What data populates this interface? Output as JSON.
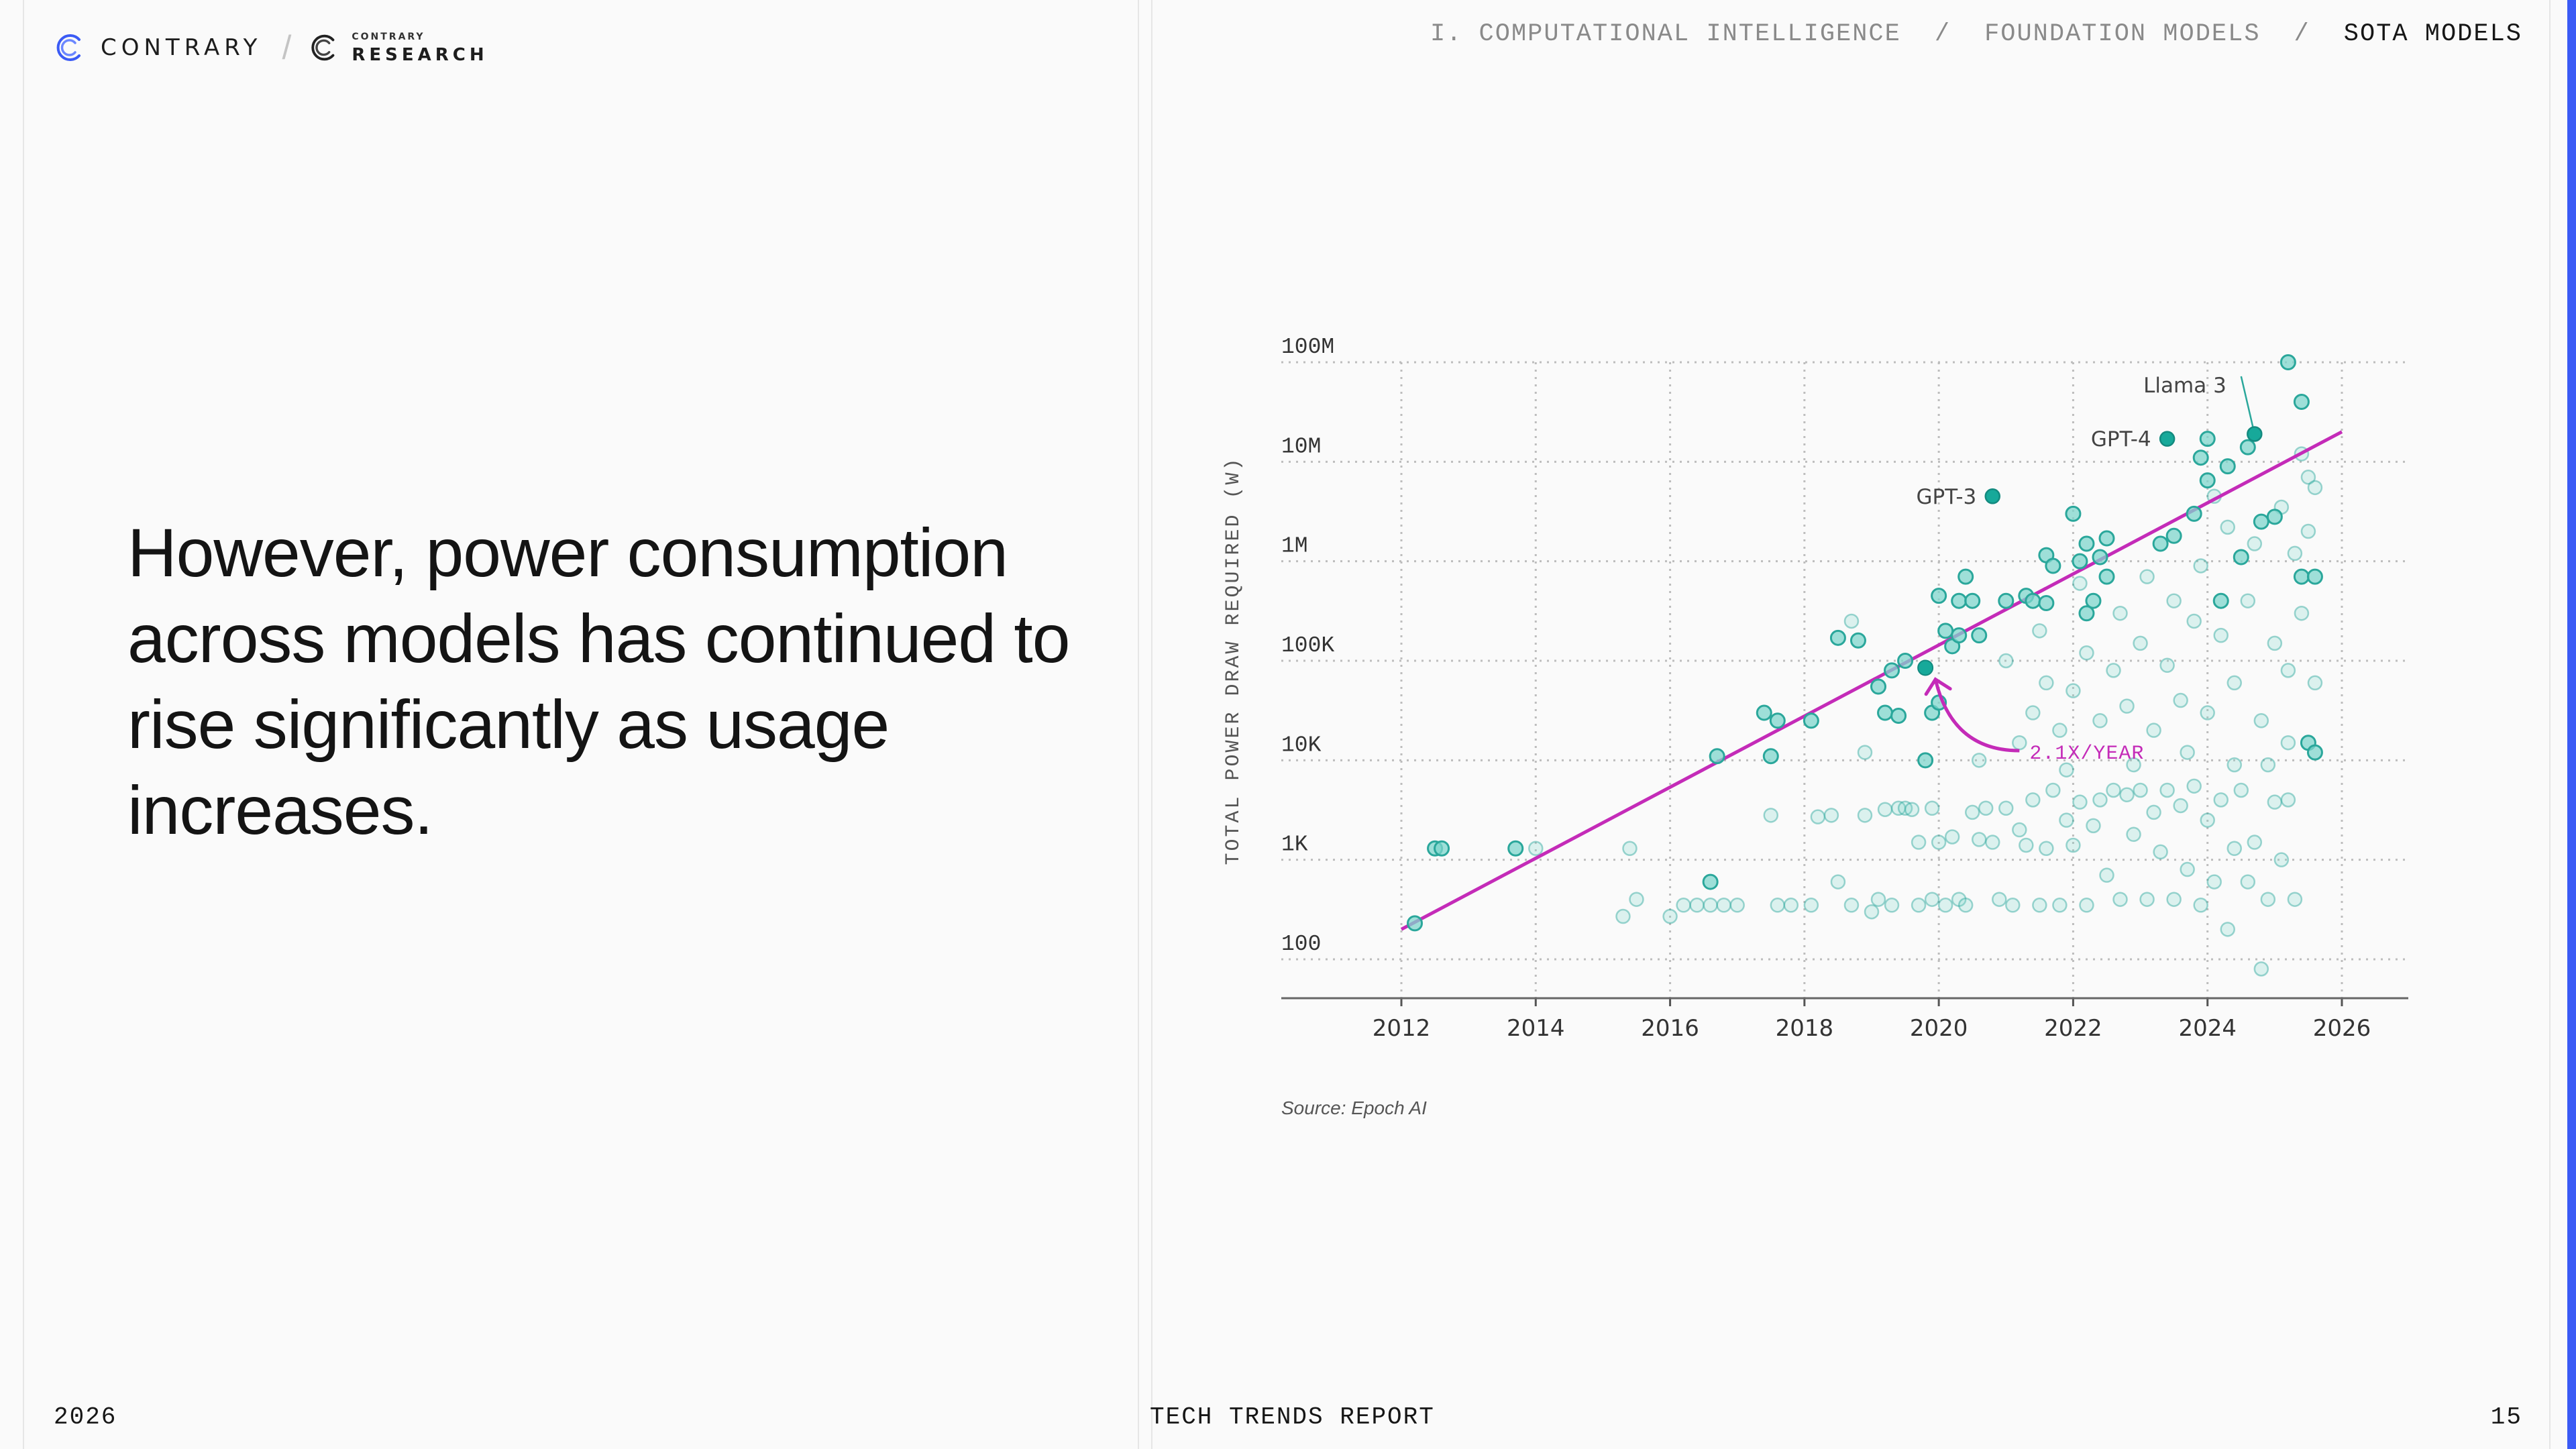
{
  "brand": {
    "name": "CONTRARY",
    "research_small": "CONTRARY",
    "research_big": "RESEARCH",
    "accent_color": "#3b5bf5"
  },
  "breadcrumb": {
    "items": [
      "I. COMPUTATIONAL INTELLIGENCE",
      "FOUNDATION MODELS",
      "SOTA MODELS"
    ],
    "separator": "/"
  },
  "headline": "However, power consumption across models has continued to rise significantly as usage increases.",
  "footer": {
    "year": "2026",
    "report": "TECH TRENDS REPORT",
    "page": "15"
  },
  "source": "Source: Epoch AI",
  "chart_data": {
    "type": "scatter",
    "title": "",
    "xlabel": "",
    "ylabel": "TOTAL POWER DRAW REQUIRED (W)",
    "xlim": [
      2010.35,
      2027.0
    ],
    "ylim": [
      30,
      100000000
    ],
    "yscale": "log",
    "x_ticks": [
      2012,
      2014,
      2016,
      2018,
      2020,
      2022,
      2024,
      2026
    ],
    "x_tick_labels": [
      "2012",
      "2014",
      "2016",
      "2018",
      "2020",
      "2022",
      "2024",
      "2026"
    ],
    "y_ticks": [
      100,
      1000,
      10000,
      100000,
      1000000,
      10000000,
      100000000
    ],
    "y_tick_labels": [
      "100",
      "1K",
      "10K",
      "100K",
      "1M",
      "10M",
      "100M"
    ],
    "grid": true,
    "colors": {
      "point_fill": "#7fd6cc",
      "point_stroke": "#2aa79b",
      "point_dark": "#17a99a",
      "trend": "#c42bb8",
      "grid": "#bdbdbd",
      "label": "#444444"
    },
    "trend": {
      "label": "2.1X/YEAR",
      "start": [
        2012.0,
        200
      ],
      "end": [
        2026.0,
        20000000
      ]
    },
    "series": [
      {
        "style": "highlighted",
        "points": [
          [
            2012.2,
            230
          ],
          [
            2012.5,
            1300
          ],
          [
            2012.6,
            1300
          ],
          [
            2013.7,
            1300
          ],
          [
            2016.6,
            600
          ],
          [
            2016.7,
            11000
          ],
          [
            2017.4,
            30000
          ],
          [
            2017.5,
            11000
          ],
          [
            2017.6,
            25000
          ],
          [
            2018.1,
            25000
          ],
          [
            2018.5,
            170000
          ],
          [
            2018.8,
            160000
          ],
          [
            2019.1,
            55000
          ],
          [
            2019.2,
            30000
          ],
          [
            2019.3,
            80000
          ],
          [
            2019.4,
            28000
          ],
          [
            2019.5,
            100000
          ],
          [
            2019.8,
            10000
          ],
          [
            2019.9,
            30000
          ],
          [
            2020.0,
            38000
          ],
          [
            2020.0,
            450000
          ],
          [
            2020.1,
            200000
          ],
          [
            2020.2,
            140000
          ],
          [
            2020.3,
            180000
          ],
          [
            2020.3,
            400000
          ],
          [
            2020.4,
            700000
          ],
          [
            2020.5,
            400000
          ],
          [
            2020.6,
            180000
          ],
          [
            2021.0,
            400000
          ],
          [
            2021.3,
            450000
          ],
          [
            2021.4,
            400000
          ],
          [
            2021.6,
            380000
          ],
          [
            2021.6,
            1150000
          ],
          [
            2021.7,
            900000
          ],
          [
            2022.0,
            3000000
          ],
          [
            2022.1,
            1000000
          ],
          [
            2022.2,
            1500000
          ],
          [
            2022.2,
            300000
          ],
          [
            2022.3,
            400000
          ],
          [
            2022.4,
            1100000
          ],
          [
            2022.5,
            1700000
          ],
          [
            2022.5,
            700000
          ],
          [
            2023.3,
            1500000
          ],
          [
            2023.5,
            1800000
          ],
          [
            2023.8,
            3000000
          ],
          [
            2023.9,
            11000000
          ],
          [
            2024.0,
            6500000
          ],
          [
            2024.0,
            17000000
          ],
          [
            2024.2,
            400000
          ],
          [
            2024.3,
            9000000
          ],
          [
            2024.5,
            1100000
          ],
          [
            2024.6,
            14000000
          ],
          [
            2024.8,
            2500000
          ],
          [
            2025.0,
            2800000
          ],
          [
            2025.2,
            100000000
          ],
          [
            2025.4,
            40000000
          ],
          [
            2025.4,
            700000
          ],
          [
            2025.5,
            15000
          ],
          [
            2025.6,
            700000
          ],
          [
            2025.6,
            12000
          ]
        ]
      },
      {
        "style": "faint",
        "points": [
          [
            2014.0,
            1300
          ],
          [
            2015.3,
            270
          ],
          [
            2015.4,
            1300
          ],
          [
            2015.5,
            400
          ],
          [
            2016.0,
            270
          ],
          [
            2016.2,
            350
          ],
          [
            2016.4,
            350
          ],
          [
            2016.6,
            350
          ],
          [
            2016.8,
            350
          ],
          [
            2017.0,
            350
          ],
          [
            2017.5,
            2800
          ],
          [
            2017.6,
            350
          ],
          [
            2017.8,
            350
          ],
          [
            2018.1,
            350
          ],
          [
            2018.2,
            2700
          ],
          [
            2018.4,
            2800
          ],
          [
            2018.5,
            600
          ],
          [
            2018.7,
            250000
          ],
          [
            2018.7,
            350
          ],
          [
            2018.9,
            12000
          ],
          [
            2018.9,
            2800
          ],
          [
            2019.0,
            300
          ],
          [
            2019.1,
            400
          ],
          [
            2019.2,
            3200
          ],
          [
            2019.3,
            350
          ],
          [
            2019.4,
            3300
          ],
          [
            2019.5,
            3300
          ],
          [
            2019.6,
            3200
          ],
          [
            2019.7,
            1500
          ],
          [
            2019.7,
            350
          ],
          [
            2019.9,
            3300
          ],
          [
            2019.9,
            400
          ],
          [
            2020.0,
            1500
          ],
          [
            2020.1,
            350
          ],
          [
            2020.2,
            1700
          ],
          [
            2020.3,
            400
          ],
          [
            2020.4,
            350
          ],
          [
            2020.5,
            3000
          ],
          [
            2020.6,
            1600
          ],
          [
            2020.7,
            3300
          ],
          [
            2020.8,
            1500
          ],
          [
            2020.9,
            400
          ],
          [
            2021.0,
            3300
          ],
          [
            2021.1,
            350
          ],
          [
            2021.2,
            2000
          ],
          [
            2021.3,
            1400
          ],
          [
            2021.4,
            4000
          ],
          [
            2021.5,
            350
          ],
          [
            2021.6,
            1300
          ],
          [
            2021.7,
            5000
          ],
          [
            2021.8,
            350
          ],
          [
            2021.9,
            2500
          ],
          [
            2022.0,
            1400
          ],
          [
            2022.1,
            3800
          ],
          [
            2022.2,
            350
          ],
          [
            2022.3,
            2200
          ],
          [
            2022.4,
            4000
          ],
          [
            2022.5,
            700
          ],
          [
            2022.6,
            5000
          ],
          [
            2022.7,
            400
          ],
          [
            2022.8,
            4500
          ],
          [
            2022.9,
            1800
          ],
          [
            2023.0,
            5000
          ],
          [
            2023.1,
            400
          ],
          [
            2023.2,
            3000
          ],
          [
            2023.3,
            1200
          ],
          [
            2023.4,
            5000
          ],
          [
            2023.5,
            400
          ],
          [
            2023.6,
            3500
          ],
          [
            2023.7,
            800
          ],
          [
            2023.8,
            5500
          ],
          [
            2023.9,
            350
          ],
          [
            2024.0,
            2500
          ],
          [
            2024.1,
            600
          ],
          [
            2024.2,
            4000
          ],
          [
            2024.3,
            200
          ],
          [
            2024.4,
            1300
          ],
          [
            2024.5,
            5000
          ],
          [
            2024.6,
            600
          ],
          [
            2024.7,
            1500
          ],
          [
            2024.8,
            80
          ],
          [
            2024.9,
            400
          ],
          [
            2025.0,
            3800
          ],
          [
            2025.1,
            1000
          ],
          [
            2025.2,
            4000
          ],
          [
            2025.3,
            400
          ],
          [
            2025.4,
            12000000
          ],
          [
            2025.5,
            7000000
          ],
          [
            2021.2,
            15000
          ],
          [
            2021.4,
            30000
          ],
          [
            2021.6,
            60000
          ],
          [
            2021.8,
            20000
          ],
          [
            2022.0,
            50000
          ],
          [
            2022.2,
            120000
          ],
          [
            2022.4,
            25000
          ],
          [
            2022.6,
            80000
          ],
          [
            2022.8,
            35000
          ],
          [
            2023.0,
            150000
          ],
          [
            2023.2,
            20000
          ],
          [
            2023.4,
            90000
          ],
          [
            2023.6,
            40000
          ],
          [
            2023.8,
            250000
          ],
          [
            2024.0,
            30000
          ],
          [
            2024.2,
            180000
          ],
          [
            2024.4,
            60000
          ],
          [
            2024.6,
            400000
          ],
          [
            2024.8,
            25000
          ],
          [
            2025.0,
            150000
          ],
          [
            2025.2,
            80000
          ],
          [
            2025.4,
            300000
          ],
          [
            2025.6,
            60000
          ],
          [
            2025.6,
            5500000
          ],
          [
            2021.0,
            100000
          ],
          [
            2021.5,
            200000
          ],
          [
            2022.1,
            600000
          ],
          [
            2022.7,
            300000
          ],
          [
            2023.1,
            700000
          ],
          [
            2023.5,
            400000
          ],
          [
            2023.9,
            900000
          ],
          [
            2024.3,
            2200000
          ],
          [
            2024.7,
            1500000
          ],
          [
            2025.1,
            3500000
          ],
          [
            2025.3,
            1200000
          ],
          [
            2025.5,
            2000000
          ],
          [
            2024.1,
            4500000
          ],
          [
            2024.4,
            9000
          ],
          [
            2023.7,
            12000
          ],
          [
            2022.9,
            9000
          ],
          [
            2020.6,
            10000
          ],
          [
            2021.9,
            8000
          ],
          [
            2024.9,
            9000
          ],
          [
            2025.2,
            15000
          ]
        ]
      }
    ],
    "annotations": [
      {
        "label": "GPT-3",
        "point": [
          2020.8,
          4500000
        ],
        "style": "highlighted"
      },
      {
        "label": "GPT-4",
        "point": [
          2023.4,
          17000000
        ],
        "style": "highlighted"
      },
      {
        "label": "Llama 3",
        "point": [
          2024.7,
          19000000
        ],
        "style": "highlighted"
      }
    ],
    "dark_points": [
      [
        2019.8,
        85000
      ]
    ]
  }
}
